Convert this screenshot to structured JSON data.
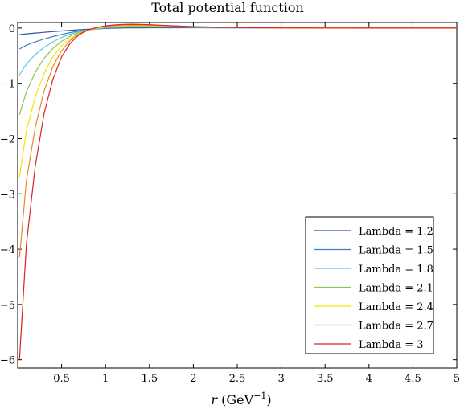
{
  "chart_data": {
    "type": "line",
    "title": "Total potential function",
    "xlabel_main": "r",
    "xlabel_unit_base": "GeV",
    "xlabel_unit_exp": "−1",
    "ylabel": "",
    "xlim": [
      0,
      5
    ],
    "ylim": [
      -6.15,
      0.1
    ],
    "xticks": [
      0.5,
      1,
      1.5,
      2,
      2.5,
      3,
      3.5,
      4,
      4.5,
      5
    ],
    "xtick_labels": [
      "0.5",
      "1",
      "1.5",
      "2",
      "2.5",
      "3",
      "3.5",
      "4",
      "4.5",
      "5"
    ],
    "yticks": [
      0,
      -1,
      -2,
      -3,
      -4,
      -5,
      -6
    ],
    "ytick_labels": [
      "0",
      "−1",
      "−2",
      "−3",
      "−4",
      "−5",
      "−6"
    ],
    "grid": false,
    "legend_position": "bottom-right",
    "x": [
      0.02,
      0.1,
      0.2,
      0.3,
      0.4,
      0.5,
      0.6,
      0.7,
      0.8,
      0.9,
      1.0,
      1.1,
      1.2,
      1.3,
      1.4,
      1.5,
      1.7,
      2.0,
      2.5,
      3.0,
      3.5,
      4.0,
      4.5,
      5.0
    ],
    "series": [
      {
        "name": "Lambda = 1.2",
        "color": "#2b55a5",
        "values": [
          -0.12,
          -0.105,
          -0.09,
          -0.077,
          -0.064,
          -0.052,
          -0.041,
          -0.031,
          -0.022,
          -0.014,
          -0.007,
          -0.002,
          0.001,
          0.003,
          0.004,
          0.005,
          0.005,
          0.005,
          0.004,
          0.003,
          0.002,
          0.001,
          0.001,
          0.0
        ]
      },
      {
        "name": "Lambda = 1.5",
        "color": "#3b82c4",
        "values": [
          -0.38,
          -0.31,
          -0.25,
          -0.2,
          -0.155,
          -0.115,
          -0.082,
          -0.055,
          -0.034,
          -0.017,
          -0.005,
          0.004,
          0.01,
          0.013,
          0.015,
          0.015,
          0.014,
          0.011,
          0.007,
          0.004,
          0.002,
          0.001,
          0.001,
          0.0
        ]
      },
      {
        "name": "Lambda = 1.8",
        "color": "#5cc6e8",
        "values": [
          -0.85,
          -0.65,
          -0.48,
          -0.35,
          -0.25,
          -0.17,
          -0.11,
          -0.065,
          -0.033,
          -0.011,
          0.005,
          0.016,
          0.023,
          0.026,
          0.027,
          0.026,
          0.023,
          0.017,
          0.01,
          0.005,
          0.003,
          0.001,
          0.001,
          0.0
        ]
      },
      {
        "name": "Lambda = 2.1",
        "color": "#8cc45a",
        "values": [
          -1.57,
          -1.15,
          -0.8,
          -0.55,
          -0.37,
          -0.24,
          -0.145,
          -0.08,
          -0.035,
          -0.006,
          0.014,
          0.027,
          0.034,
          0.037,
          0.037,
          0.035,
          0.029,
          0.02,
          0.01,
          0.005,
          0.002,
          0.001,
          0.0,
          0.0
        ]
      },
      {
        "name": "Lambda = 2.4",
        "color": "#f2e600",
        "values": [
          -2.7,
          -1.85,
          -1.25,
          -0.82,
          -0.52,
          -0.32,
          -0.185,
          -0.095,
          -0.037,
          -0.002,
          0.022,
          0.036,
          0.044,
          0.047,
          0.047,
          0.044,
          0.035,
          0.022,
          0.01,
          0.004,
          0.002,
          0.001,
          0.0,
          0.0
        ]
      },
      {
        "name": "Lambda = 2.7",
        "color": "#e8892a",
        "values": [
          -4.15,
          -2.75,
          -1.8,
          -1.14,
          -0.7,
          -0.41,
          -0.22,
          -0.105,
          -0.035,
          0.006,
          0.03,
          0.045,
          0.054,
          0.057,
          0.056,
          0.052,
          0.04,
          0.024,
          0.009,
          0.003,
          0.001,
          0.0,
          0.0,
          0.0
        ]
      },
      {
        "name": "Lambda = 3",
        "color": "#e02020",
        "values": [
          -6.0,
          -3.9,
          -2.5,
          -1.55,
          -0.93,
          -0.52,
          -0.27,
          -0.12,
          -0.035,
          0.012,
          0.04,
          0.057,
          0.066,
          0.069,
          0.067,
          0.061,
          0.046,
          0.026,
          0.009,
          0.003,
          0.001,
          0.0,
          0.0,
          0.0
        ]
      }
    ]
  }
}
